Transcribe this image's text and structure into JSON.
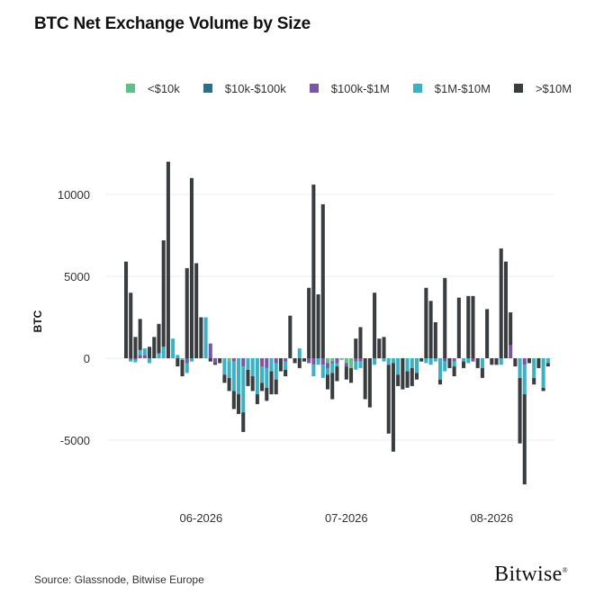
{
  "title": "BTC Net Exchange Volume by Size",
  "source": "Source: Glassnode, Bitwise Europe",
  "brand": "Bitwise",
  "brand_mark": "®",
  "colors": {
    "lt10k": "#5fbf86",
    "10k_100k": "#2b6f86",
    "100k_1m": "#7b55a6",
    "1m_10m": "#3db0c4",
    "gt10m": "#3a3d40"
  },
  "chart_data": {
    "type": "bar",
    "stacked": true,
    "title": "BTC Net Exchange Volume by Size",
    "xlabel": "",
    "ylabel": "BTC",
    "ylim": [
      -8000,
      12500
    ],
    "yticks": [
      -5000,
      0,
      5000,
      10000
    ],
    "xtick_labels": [
      {
        "label": "06-2026",
        "index": 16
      },
      {
        "label": "07-2026",
        "index": 47
      },
      {
        "label": "08-2026",
        "index": 78
      }
    ],
    "grid": true,
    "legend_position": "top",
    "series": [
      {
        "name": "<$10k",
        "color": "#5fbf86",
        "values": [
          0,
          0,
          0,
          0,
          0,
          0,
          0,
          0,
          0,
          0,
          0,
          0,
          0,
          0,
          0,
          0,
          0,
          0,
          0,
          0,
          0,
          0,
          -200,
          0,
          0,
          0,
          0,
          0,
          0,
          0,
          0,
          0,
          0,
          0,
          0,
          0,
          0,
          0,
          0,
          0,
          0,
          0,
          0,
          -300,
          -200,
          0,
          -100,
          -300,
          -600,
          0,
          0,
          0,
          0,
          0,
          0,
          0,
          0,
          0,
          0,
          0,
          0,
          0,
          0,
          0,
          0,
          0,
          0,
          0,
          0,
          0,
          0,
          0,
          0,
          0,
          0,
          0,
          0,
          0,
          0,
          0,
          0,
          0,
          0,
          0,
          0,
          0,
          0,
          0,
          0,
          0,
          0
        ]
      },
      {
        "name": "$10k-$100k",
        "color": "#2b6f86",
        "values": [
          0,
          0,
          0,
          0,
          0,
          0,
          0,
          0,
          0,
          0,
          0,
          0,
          0,
          0,
          0,
          0,
          0,
          0,
          0,
          0,
          0,
          0,
          0,
          0,
          0,
          0,
          0,
          0,
          0,
          0,
          0,
          0,
          0,
          0,
          0,
          0,
          0,
          0,
          0,
          0,
          0,
          0,
          0,
          0,
          0,
          0,
          0,
          0,
          0,
          0,
          0,
          0,
          0,
          0,
          0,
          0,
          0,
          0,
          0,
          0,
          0,
          0,
          0,
          0,
          0,
          0,
          0,
          0,
          0,
          0,
          0,
          0,
          0,
          0,
          0,
          0,
          0,
          0,
          0,
          0,
          0,
          0,
          0,
          0,
          0,
          0,
          0,
          0,
          0,
          0,
          0
        ]
      },
      {
        "name": "$100k-$1M",
        "color": "#7b55a6",
        "values": [
          0,
          -100,
          -100,
          200,
          200,
          0,
          0,
          0,
          0,
          0,
          0,
          0,
          0,
          -300,
          0,
          0,
          0,
          0,
          900,
          -300,
          0,
          0,
          0,
          -200,
          0,
          -500,
          0,
          0,
          0,
          -500,
          -600,
          0,
          -300,
          0,
          -200,
          0,
          0,
          0,
          0,
          -300,
          -400,
          0,
          -400,
          -300,
          -100,
          -300,
          0,
          -200,
          0,
          -200,
          -200,
          0,
          0,
          0,
          0,
          0,
          0,
          0,
          0,
          0,
          0,
          0,
          0,
          0,
          0,
          0,
          0,
          0,
          -200,
          0,
          -200,
          0,
          0,
          0,
          -200,
          0,
          0,
          0,
          0,
          0,
          0,
          0,
          800,
          0,
          0,
          -400,
          0,
          0,
          0,
          0,
          0
        ]
      },
      {
        "name": "$1M-$10M",
        "color": "#3db0c4",
        "values": [
          0,
          -100,
          -150,
          300,
          400,
          -300,
          0,
          300,
          700,
          0,
          1200,
          200,
          -100,
          -600,
          -200,
          0,
          0,
          2500,
          0,
          0,
          0,
          -1000,
          -1000,
          -1800,
          -2200,
          -2800,
          -700,
          -1100,
          -2200,
          -1000,
          -1200,
          -800,
          -1000,
          0,
          -500,
          0,
          0,
          600,
          0,
          0,
          -700,
          -400,
          -800,
          -400,
          -600,
          -200,
          0,
          0,
          0,
          -500,
          -400,
          0,
          0,
          -400,
          0,
          -200,
          -400,
          -300,
          -1000,
          0,
          -800,
          -600,
          -900,
          0,
          -300,
          -400,
          -200,
          -1300,
          -600,
          0,
          -300,
          0,
          -200,
          -300,
          0,
          0,
          -600,
          0,
          0,
          0,
          -400,
          0,
          0,
          0,
          -1200,
          -1800,
          0,
          -1200,
          0,
          -1800,
          -300
        ]
      },
      {
        "name": ">$10M",
        "color": "#3a3d40",
        "values": [
          5900,
          4000,
          1300,
          1900,
          0,
          700,
          1300,
          1800,
          6500,
          12000,
          0,
          -500,
          -1000,
          5500,
          11000,
          5800,
          2500,
          0,
          -200,
          -100,
          -300,
          -500,
          -800,
          -1100,
          -1200,
          -1200,
          -1000,
          -900,
          -600,
          -500,
          -800,
          -1400,
          -900,
          -800,
          -400,
          2600,
          -300,
          -600,
          -200,
          4300,
          10600,
          3900,
          9400,
          -900,
          -1600,
          -900,
          0,
          -800,
          -900,
          1200,
          1900,
          -2500,
          -3000,
          4000,
          1200,
          1300,
          -4200,
          -5400,
          -700,
          -1900,
          -1000,
          -1100,
          -400,
          -200,
          4300,
          3500,
          2200,
          -300,
          4900,
          -600,
          -600,
          3700,
          -400,
          3800,
          3800,
          -600,
          -600,
          3000,
          -400,
          -400,
          6700,
          5900,
          2000,
          -500,
          -4000,
          -5500,
          -300,
          -400,
          -600,
          -200,
          -200
        ]
      }
    ],
    "positive_extra_index": []
  }
}
